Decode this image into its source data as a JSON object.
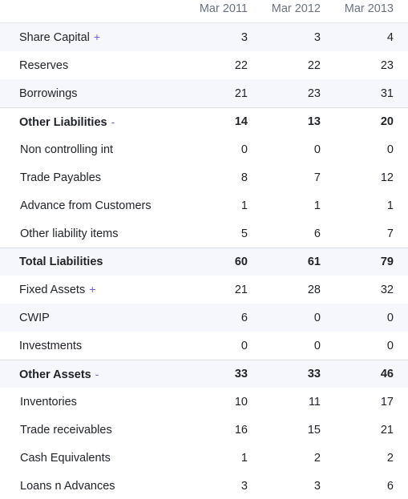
{
  "columns": [
    "Mar 2011",
    "Mar 2012",
    "Mar 2013"
  ],
  "rows": [
    {
      "label": "Share Capital",
      "toggle": "+",
      "values": [
        "3",
        "3",
        "4"
      ],
      "bold": false,
      "shaded": true,
      "child": false,
      "sep": false
    },
    {
      "label": "Reserves",
      "toggle": "",
      "values": [
        "22",
        "22",
        "23"
      ],
      "bold": false,
      "shaded": false,
      "child": false,
      "sep": false
    },
    {
      "label": "Borrowings",
      "toggle": "",
      "values": [
        "21",
        "23",
        "31"
      ],
      "bold": false,
      "shaded": true,
      "child": false,
      "sep": false
    },
    {
      "label": "Other Liabilities",
      "toggle": "-",
      "values": [
        "14",
        "13",
        "20"
      ],
      "bold": true,
      "shaded": false,
      "child": false,
      "sep": true
    },
    {
      "label": "Non controlling int",
      "toggle": "",
      "values": [
        "0",
        "0",
        "0"
      ],
      "bold": false,
      "shaded": false,
      "child": true,
      "sep": false
    },
    {
      "label": "Trade Payables",
      "toggle": "",
      "values": [
        "8",
        "7",
        "12"
      ],
      "bold": false,
      "shaded": false,
      "child": true,
      "sep": false
    },
    {
      "label": "Advance from Customers",
      "toggle": "",
      "values": [
        "1",
        "1",
        "1"
      ],
      "bold": false,
      "shaded": false,
      "child": true,
      "sep": false
    },
    {
      "label": "Other liability items",
      "toggle": "",
      "values": [
        "5",
        "6",
        "7"
      ],
      "bold": false,
      "shaded": false,
      "child": true,
      "sep": false
    },
    {
      "label": "Total Liabilities",
      "toggle": "",
      "values": [
        "60",
        "61",
        "79"
      ],
      "bold": true,
      "shaded": true,
      "child": false,
      "sep": true
    },
    {
      "label": "Fixed Assets",
      "toggle": "+",
      "values": [
        "21",
        "28",
        "32"
      ],
      "bold": false,
      "shaded": false,
      "child": false,
      "sep": false
    },
    {
      "label": "CWIP",
      "toggle": "",
      "values": [
        "6",
        "0",
        "0"
      ],
      "bold": false,
      "shaded": true,
      "child": false,
      "sep": false
    },
    {
      "label": "Investments",
      "toggle": "",
      "values": [
        "0",
        "0",
        "0"
      ],
      "bold": false,
      "shaded": false,
      "child": false,
      "sep": false
    },
    {
      "label": "Other Assets",
      "toggle": "-",
      "values": [
        "33",
        "33",
        "46"
      ],
      "bold": true,
      "shaded": true,
      "child": false,
      "sep": true
    },
    {
      "label": "Inventories",
      "toggle": "",
      "values": [
        "10",
        "11",
        "17"
      ],
      "bold": false,
      "shaded": false,
      "child": true,
      "sep": false
    },
    {
      "label": "Trade receivables",
      "toggle": "",
      "values": [
        "16",
        "15",
        "21"
      ],
      "bold": false,
      "shaded": false,
      "child": true,
      "sep": false
    },
    {
      "label": "Cash Equivalents",
      "toggle": "",
      "values": [
        "1",
        "2",
        "2"
      ],
      "bold": false,
      "shaded": false,
      "child": true,
      "sep": false
    },
    {
      "label": "Loans n Advances",
      "toggle": "",
      "values": [
        "3",
        "3",
        "6"
      ],
      "bold": false,
      "shaded": false,
      "child": true,
      "sep": false
    }
  ]
}
